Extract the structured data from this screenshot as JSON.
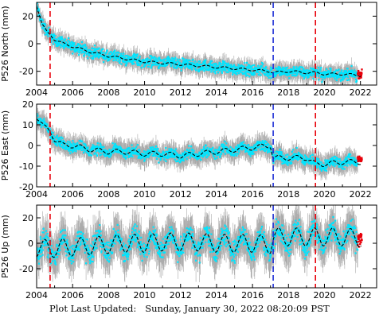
{
  "footer": "Plot Last Updated:   Sunday, January 30, 2022 08:20:09 PST",
  "colors": {
    "data": "#00e5ff",
    "error": "#aaaaaa",
    "model": "#000000",
    "red_line": "#e8000b",
    "blue_line": "#1f2fd6",
    "recent": "#e8000b"
  },
  "chart_data": [
    {
      "type": "scatter",
      "ylabel": "P526 North (mm)",
      "xlim": [
        2004,
        2022.9
      ],
      "ylim": [
        -30,
        30
      ],
      "x_ticks": [
        2004,
        2006,
        2008,
        2010,
        2012,
        2014,
        2016,
        2018,
        2020,
        2022
      ],
      "y_ticks": [
        -20,
        0,
        20
      ],
      "red_lines": [
        2004.75,
        2019.5
      ],
      "blue_lines": [
        2017.15
      ],
      "model": {
        "x": [
          2004.0,
          2004.3,
          2004.6,
          2004.75,
          2005.0,
          2005.5,
          2006.0,
          2007.0,
          2008.0,
          2009.0,
          2010.0,
          2011.0,
          2012.0,
          2013.0,
          2014.0,
          2015.0,
          2016.0,
          2017.0,
          2017.15,
          2018.0,
          2019.0,
          2019.5,
          2020.0,
          2021.0,
          2022.0
        ],
        "y": [
          28,
          14,
          8,
          7,
          3,
          0,
          -2,
          -6,
          -9,
          -11,
          -13,
          -14,
          -15,
          -16,
          -17,
          -18,
          -19,
          -20,
          -21,
          -20,
          -21,
          -21,
          -22,
          -22,
          -23
        ]
      },
      "noise": 3,
      "error_bar": 5,
      "seasonal_amplitude": 0.8,
      "recent_value": -22
    },
    {
      "type": "scatter",
      "ylabel": "P526 East (mm)",
      "xlim": [
        2004,
        2022.9
      ],
      "ylim": [
        -20,
        20
      ],
      "x_ticks": [
        2004,
        2006,
        2008,
        2010,
        2012,
        2014,
        2016,
        2018,
        2020,
        2022
      ],
      "y_ticks": [
        -20,
        -10,
        0,
        10,
        20
      ],
      "red_lines": [
        2004.75,
        2019.5
      ],
      "blue_lines": [
        2017.15
      ],
      "model": {
        "x": [
          2004.0,
          2004.4,
          2004.75,
          2005.0,
          2005.5,
          2006.0,
          2007.0,
          2008.0,
          2009.0,
          2010.0,
          2011.0,
          2012.0,
          2013.0,
          2014.0,
          2015.0,
          2016.0,
          2017.0,
          2017.15,
          2018.0,
          2019.0,
          2019.5,
          2020.0,
          2021.0,
          2022.0
        ],
        "y": [
          14,
          9,
          7,
          3,
          0,
          0,
          -2,
          -3,
          -3,
          -4,
          -4,
          -5,
          -4,
          -3,
          -2,
          -1,
          0,
          -6,
          -6,
          -6,
          -9,
          -9,
          -8,
          -8
        ]
      },
      "noise": 2,
      "error_bar": 4,
      "seasonal_amplitude": 1.2,
      "recent_value": -7
    },
    {
      "type": "scatter",
      "ylabel": "P526 Up (mm)",
      "xlim": [
        2004,
        2022.9
      ],
      "ylim": [
        -35,
        30
      ],
      "x_ticks": [
        2004,
        2006,
        2008,
        2010,
        2012,
        2014,
        2016,
        2018,
        2020,
        2022
      ],
      "y_ticks": [
        -20,
        0,
        20
      ],
      "red_lines": [
        2004.75,
        2019.5
      ],
      "blue_lines": [
        2017.15
      ],
      "model": {
        "x": [
          2004.0,
          2005.0,
          2006.0,
          2007.0,
          2008.0,
          2009.0,
          2010.0,
          2011.0,
          2012.0,
          2013.0,
          2014.0,
          2015.0,
          2016.0,
          2017.0,
          2017.15,
          2018.0,
          2019.0,
          2020.0,
          2021.0,
          2022.0
        ],
        "y": [
          -4,
          -4,
          -3,
          -2,
          -1,
          0,
          0,
          1,
          1,
          1,
          0,
          0,
          0,
          -1,
          5,
          5,
          5,
          5,
          5,
          4
        ]
      },
      "noise": 6,
      "error_bar": 12,
      "seasonal_amplitude": 7,
      "recent_value": 3
    }
  ]
}
